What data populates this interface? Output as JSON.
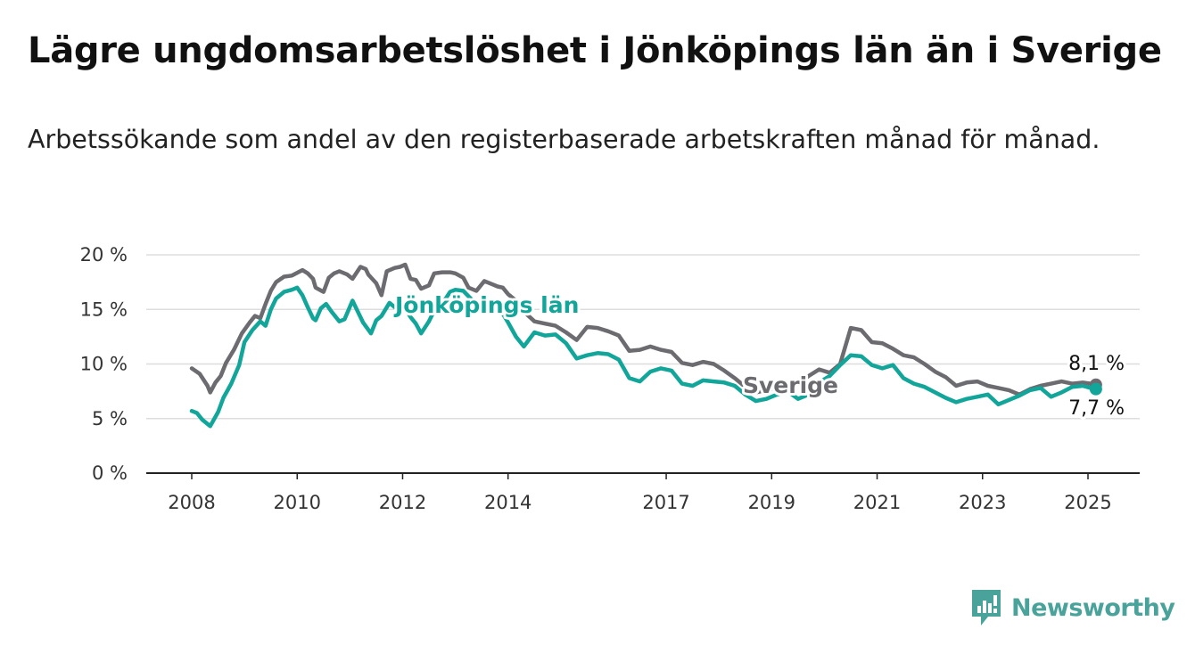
{
  "title": "Lägre ungdomsarbetslöshet i Jönköpings län än i Sverige",
  "subtitle": "Arbetssökande som andel av den registerbaserade arbetskraften månad för månad.",
  "brand": {
    "name": "Newsworthy",
    "color": "#4aa39a",
    "icon": "newsworthy-chart-icon"
  },
  "colors": {
    "jonkoping": "#12a59a",
    "sverige": "#6b6b70",
    "grid": "#dddddd",
    "axis": "#222222"
  },
  "chart_data": {
    "type": "line",
    "title": "Lägre ungdomsarbetslöshet i Jönköpings län än i Sverige",
    "ylim": [
      0,
      20
    ],
    "xlim": [
      2008.0,
      2025.2
    ],
    "ytick_labels": [
      {
        "value": 0,
        "label": "0 %"
      },
      {
        "value": 5,
        "label": "5 %"
      },
      {
        "value": 10,
        "label": "10 %"
      },
      {
        "value": 15,
        "label": "15 %"
      },
      {
        "value": 20,
        "label": "20 %"
      }
    ],
    "xtick_labels": [
      {
        "value": 2008,
        "label": "2008"
      },
      {
        "value": 2010,
        "label": "2010"
      },
      {
        "value": 2012,
        "label": "2012"
      },
      {
        "value": 2014,
        "label": "2014"
      },
      {
        "value": 2017,
        "label": "2017"
      },
      {
        "value": 2019,
        "label": "2019"
      },
      {
        "value": 2021,
        "label": "2021"
      },
      {
        "value": 2023,
        "label": "2023"
      },
      {
        "value": 2025,
        "label": "2025"
      }
    ],
    "grid": true,
    "series": [
      {
        "name": "Sverige",
        "end_label": "8,1 %",
        "x": [
          2008.0,
          2008.15,
          2008.3,
          2008.35,
          2008.45,
          2008.55,
          2008.65,
          2008.8,
          2008.95,
          2009.1,
          2009.2,
          2009.3,
          2009.4,
          2009.5,
          2009.6,
          2009.75,
          2009.9,
          2010.1,
          2010.2,
          2010.3,
          2010.35,
          2010.5,
          2010.6,
          2010.7,
          2010.8,
          2010.95,
          2011.05,
          2011.2,
          2011.3,
          2011.35,
          2011.5,
          2011.6,
          2011.7,
          2011.85,
          2011.95,
          2012.05,
          2012.15,
          2012.25,
          2012.35,
          2012.5,
          2012.6,
          2012.75,
          2012.9,
          2013.0,
          2013.15,
          2013.25,
          2013.4,
          2013.55,
          2013.7,
          2013.8,
          2013.9,
          2014.0,
          2014.15,
          2014.3,
          2014.5,
          2014.7,
          2014.9,
          2015.1,
          2015.3,
          2015.5,
          2015.7,
          2015.9,
          2016.1,
          2016.3,
          2016.5,
          2016.7,
          2016.9,
          2017.1,
          2017.3,
          2017.5,
          2017.7,
          2017.9,
          2018.1,
          2018.3,
          2018.5,
          2018.7,
          2018.9,
          2019.1,
          2019.3,
          2019.5,
          2019.7,
          2019.9,
          2020.1,
          2020.3,
          2020.5,
          2020.7,
          2020.9,
          2021.1,
          2021.3,
          2021.5,
          2021.7,
          2021.9,
          2022.1,
          2022.3,
          2022.5,
          2022.7,
          2022.9,
          2023.1,
          2023.3,
          2023.5,
          2023.7,
          2023.9,
          2024.1,
          2024.3,
          2024.5,
          2024.7,
          2024.9,
          2025.05,
          2025.15
        ],
        "y": [
          9.6,
          9.1,
          8.0,
          7.4,
          8.3,
          8.9,
          10.1,
          11.3,
          12.8,
          13.8,
          14.4,
          14.2,
          15.5,
          16.7,
          17.5,
          18.0,
          18.1,
          18.6,
          18.3,
          17.8,
          17.0,
          16.6,
          17.9,
          18.3,
          18.5,
          18.2,
          17.8,
          18.9,
          18.7,
          18.2,
          17.4,
          16.3,
          18.5,
          18.8,
          18.9,
          19.1,
          17.8,
          17.7,
          16.9,
          17.2,
          18.3,
          18.4,
          18.4,
          18.3,
          17.9,
          17.0,
          16.7,
          17.6,
          17.3,
          17.1,
          17.0,
          16.4,
          15.8,
          14.8,
          13.9,
          13.7,
          13.5,
          12.9,
          12.2,
          13.4,
          13.3,
          13.0,
          12.6,
          11.2,
          11.3,
          11.6,
          11.3,
          11.1,
          10.1,
          9.9,
          10.2,
          10.0,
          9.4,
          8.7,
          7.9,
          7.4,
          7.6,
          7.8,
          7.9,
          8.2,
          8.9,
          9.5,
          9.2,
          10.0,
          13.3,
          13.1,
          12.0,
          11.9,
          11.4,
          10.8,
          10.6,
          10.0,
          9.3,
          8.8,
          8.0,
          8.3,
          8.4,
          8.0,
          7.8,
          7.6,
          7.2,
          7.7,
          8.0,
          8.2,
          8.4,
          8.2,
          8.3,
          8.2,
          8.1
        ]
      },
      {
        "name": "Jönköpings län",
        "end_label": "7,7 %",
        "x": [
          2008.0,
          2008.1,
          2008.2,
          2008.35,
          2008.5,
          2008.6,
          2008.75,
          2008.9,
          2009.0,
          2009.15,
          2009.3,
          2009.4,
          2009.5,
          2009.6,
          2009.75,
          2009.9,
          2010.0,
          2010.1,
          2010.2,
          2010.3,
          2010.35,
          2010.45,
          2010.55,
          2010.65,
          2010.8,
          2010.9,
          2011.05,
          2011.15,
          2011.25,
          2011.4,
          2011.5,
          2011.6,
          2011.75,
          2011.85,
          2011.95,
          2012.05,
          2012.15,
          2012.25,
          2012.35,
          2012.5,
          2012.6,
          2012.75,
          2012.9,
          2013.0,
          2013.15,
          2013.25,
          2013.4,
          2013.55,
          2013.7,
          2013.8,
          2013.9,
          2014.0,
          2014.15,
          2014.3,
          2014.5,
          2014.7,
          2014.9,
          2015.1,
          2015.3,
          2015.5,
          2015.7,
          2015.9,
          2016.1,
          2016.3,
          2016.5,
          2016.7,
          2016.9,
          2017.1,
          2017.3,
          2017.5,
          2017.7,
          2017.9,
          2018.1,
          2018.3,
          2018.5,
          2018.7,
          2018.9,
          2019.1,
          2019.3,
          2019.5,
          2019.7,
          2019.9,
          2020.1,
          2020.3,
          2020.5,
          2020.7,
          2020.9,
          2021.1,
          2021.3,
          2021.5,
          2021.7,
          2021.9,
          2022.1,
          2022.3,
          2022.5,
          2022.7,
          2022.9,
          2023.1,
          2023.3,
          2023.5,
          2023.7,
          2023.9,
          2024.1,
          2024.3,
          2024.5,
          2024.7,
          2024.9,
          2025.05,
          2025.15
        ],
        "y": [
          5.7,
          5.5,
          4.9,
          4.3,
          5.6,
          6.9,
          8.2,
          9.9,
          12.0,
          13.1,
          13.9,
          13.5,
          15.0,
          16.0,
          16.6,
          16.8,
          17.0,
          16.3,
          15.2,
          14.2,
          14.0,
          15.1,
          15.5,
          14.8,
          13.9,
          14.1,
          15.8,
          14.8,
          13.8,
          12.8,
          14.0,
          14.4,
          15.6,
          15.2,
          15.3,
          15.1,
          14.3,
          13.7,
          12.8,
          13.9,
          14.9,
          15.5,
          16.6,
          16.8,
          16.7,
          16.2,
          15.5,
          15.4,
          15.0,
          14.8,
          14.6,
          13.8,
          12.5,
          11.6,
          12.9,
          12.6,
          12.7,
          11.9,
          10.5,
          10.8,
          11.0,
          10.9,
          10.4,
          8.7,
          8.4,
          9.3,
          9.6,
          9.4,
          8.2,
          8.0,
          8.5,
          8.4,
          8.3,
          8.0,
          7.2,
          6.6,
          6.8,
          7.2,
          7.5,
          6.8,
          7.2,
          8.3,
          8.9,
          9.9,
          10.8,
          10.7,
          9.9,
          9.6,
          9.9,
          8.7,
          8.2,
          7.9,
          7.4,
          6.9,
          6.5,
          6.8,
          7.0,
          7.2,
          6.3,
          6.7,
          7.1,
          7.6,
          7.8,
          7.0,
          7.4,
          7.9,
          8.0,
          7.8,
          7.7
        ]
      }
    ]
  }
}
